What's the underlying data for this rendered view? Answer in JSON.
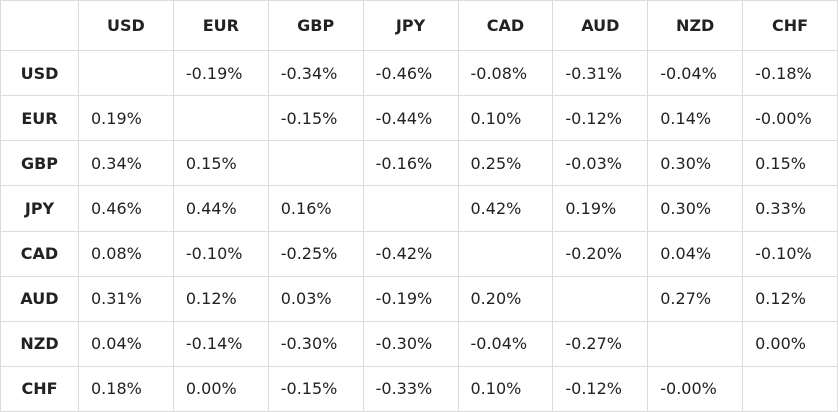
{
  "table": {
    "columns": [
      "USD",
      "EUR",
      "GBP",
      "JPY",
      "CAD",
      "AUD",
      "NZD",
      "CHF"
    ],
    "rows": [
      {
        "label": "USD",
        "cells": [
          null,
          "-0.19%",
          "-0.34%",
          "-0.46%",
          "-0.08%",
          "-0.31%",
          "-0.04%",
          "-0.18%"
        ]
      },
      {
        "label": "EUR",
        "cells": [
          "0.19%",
          null,
          "-0.15%",
          "-0.44%",
          "0.10%",
          "-0.12%",
          "0.14%",
          "-0.00%"
        ]
      },
      {
        "label": "GBP",
        "cells": [
          "0.34%",
          "0.15%",
          null,
          "-0.16%",
          "0.25%",
          "-0.03%",
          "0.30%",
          "0.15%"
        ]
      },
      {
        "label": "JPY",
        "cells": [
          "0.46%",
          "0.44%",
          "0.16%",
          null,
          "0.42%",
          "0.19%",
          "0.30%",
          "0.33%"
        ]
      },
      {
        "label": "CAD",
        "cells": [
          "0.08%",
          "-0.10%",
          "-0.25%",
          "-0.42%",
          null,
          "-0.20%",
          "0.04%",
          "-0.10%"
        ]
      },
      {
        "label": "AUD",
        "cells": [
          "0.31%",
          "0.12%",
          "0.03%",
          "-0.19%",
          "0.20%",
          null,
          "0.27%",
          "0.12%"
        ]
      },
      {
        "label": "NZD",
        "cells": [
          "0.04%",
          "-0.14%",
          "-0.30%",
          "-0.30%",
          "-0.04%",
          "-0.27%",
          null,
          "0.00%"
        ]
      },
      {
        "label": "CHF",
        "cells": [
          "0.18%",
          "0.00%",
          "-0.15%",
          "-0.33%",
          "0.10%",
          "-0.12%",
          "-0.00%",
          null
        ]
      }
    ]
  }
}
